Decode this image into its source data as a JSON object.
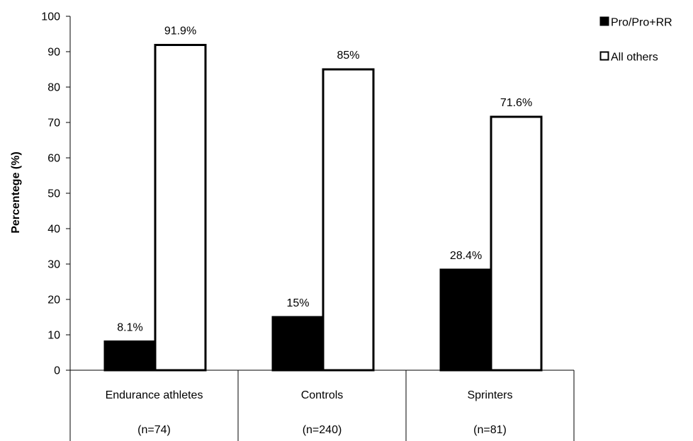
{
  "chart_data": {
    "type": "bar",
    "categories": [
      "Endurance athletes",
      "Controls",
      "Sprinters"
    ],
    "category_sublabels": [
      "(n=74)",
      "(n=240)",
      "(n=81)"
    ],
    "series": [
      {
        "name": "Pro/Pro+RR",
        "values": [
          8.1,
          15,
          28.4
        ],
        "labels": [
          "8.1%",
          "15%",
          "28.4%"
        ],
        "color": "#000000"
      },
      {
        "name": "All others",
        "values": [
          91.9,
          85,
          71.6
        ],
        "labels": [
          "91.9%",
          "85%",
          "71.6%"
        ],
        "color": "#ffffff"
      }
    ],
    "title": "",
    "xlabel": "",
    "ylabel": "Percentege (%)",
    "ylim": [
      0,
      100
    ],
    "yticks": [
      0,
      10,
      20,
      30,
      40,
      50,
      60,
      70,
      80,
      90,
      100
    ],
    "grid": false,
    "legend_position": "top-right"
  }
}
